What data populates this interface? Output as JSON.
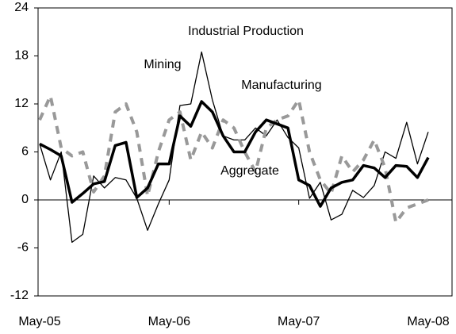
{
  "chart_data": {
    "type": "line",
    "title": "Industrial Production",
    "categories": [
      "May-05",
      null,
      null,
      null,
      null,
      null,
      null,
      null,
      null,
      null,
      null,
      null,
      "May-06",
      null,
      null,
      null,
      null,
      null,
      null,
      null,
      null,
      null,
      null,
      null,
      "May-07",
      null,
      null,
      null,
      null,
      null,
      null,
      null,
      null,
      null,
      null,
      null,
      "May-08"
    ],
    "series": [
      {
        "name": "Mining",
        "color": "#000000",
        "values": [
          7,
          2.5,
          6,
          -5.3,
          -4.3,
          3,
          1.5,
          2.8,
          2.5,
          0.2,
          -3.8,
          -0.5,
          2.5,
          11.8,
          12,
          18.5,
          12.5,
          8,
          7.5,
          7.5,
          9,
          8,
          10,
          7.8,
          6.5,
          0.2,
          2.2,
          -2.5,
          -1.8,
          1.2,
          0.3,
          1.8,
          6,
          5.2,
          9.7,
          4.5,
          8.5
        ]
      },
      {
        "name": "Manufacturing",
        "color": "#999999",
        "values": [
          10,
          13,
          6.5,
          5.5,
          6,
          1,
          3,
          11,
          12,
          8.5,
          0.5,
          6,
          10,
          11,
          5,
          8.5,
          6.5,
          10,
          9,
          6,
          3.5,
          9,
          10,
          10.5,
          12.5,
          6,
          2.5,
          0.8,
          5.5,
          3.5,
          5,
          7.5,
          4,
          -2.8,
          -1,
          -0.5,
          0
        ]
      },
      {
        "name": "Aggregate",
        "color": "#000000",
        "values": [
          7,
          6.3,
          5.5,
          -0.3,
          0.8,
          2,
          2.3,
          6.8,
          7.2,
          0.3,
          1.5,
          4.5,
          4.5,
          10.5,
          9.2,
          12.3,
          11,
          8,
          6,
          6,
          8.5,
          10,
          9.5,
          9,
          2.5,
          1.8,
          -0.8,
          1.5,
          2.2,
          2.5,
          4.3,
          4,
          2.8,
          4.3,
          4.2,
          2.8,
          5.3
        ]
      }
    ],
    "ylim": [
      -12,
      24
    ],
    "yticks": [
      -12,
      -6,
      0,
      6,
      12,
      18,
      24
    ]
  }
}
